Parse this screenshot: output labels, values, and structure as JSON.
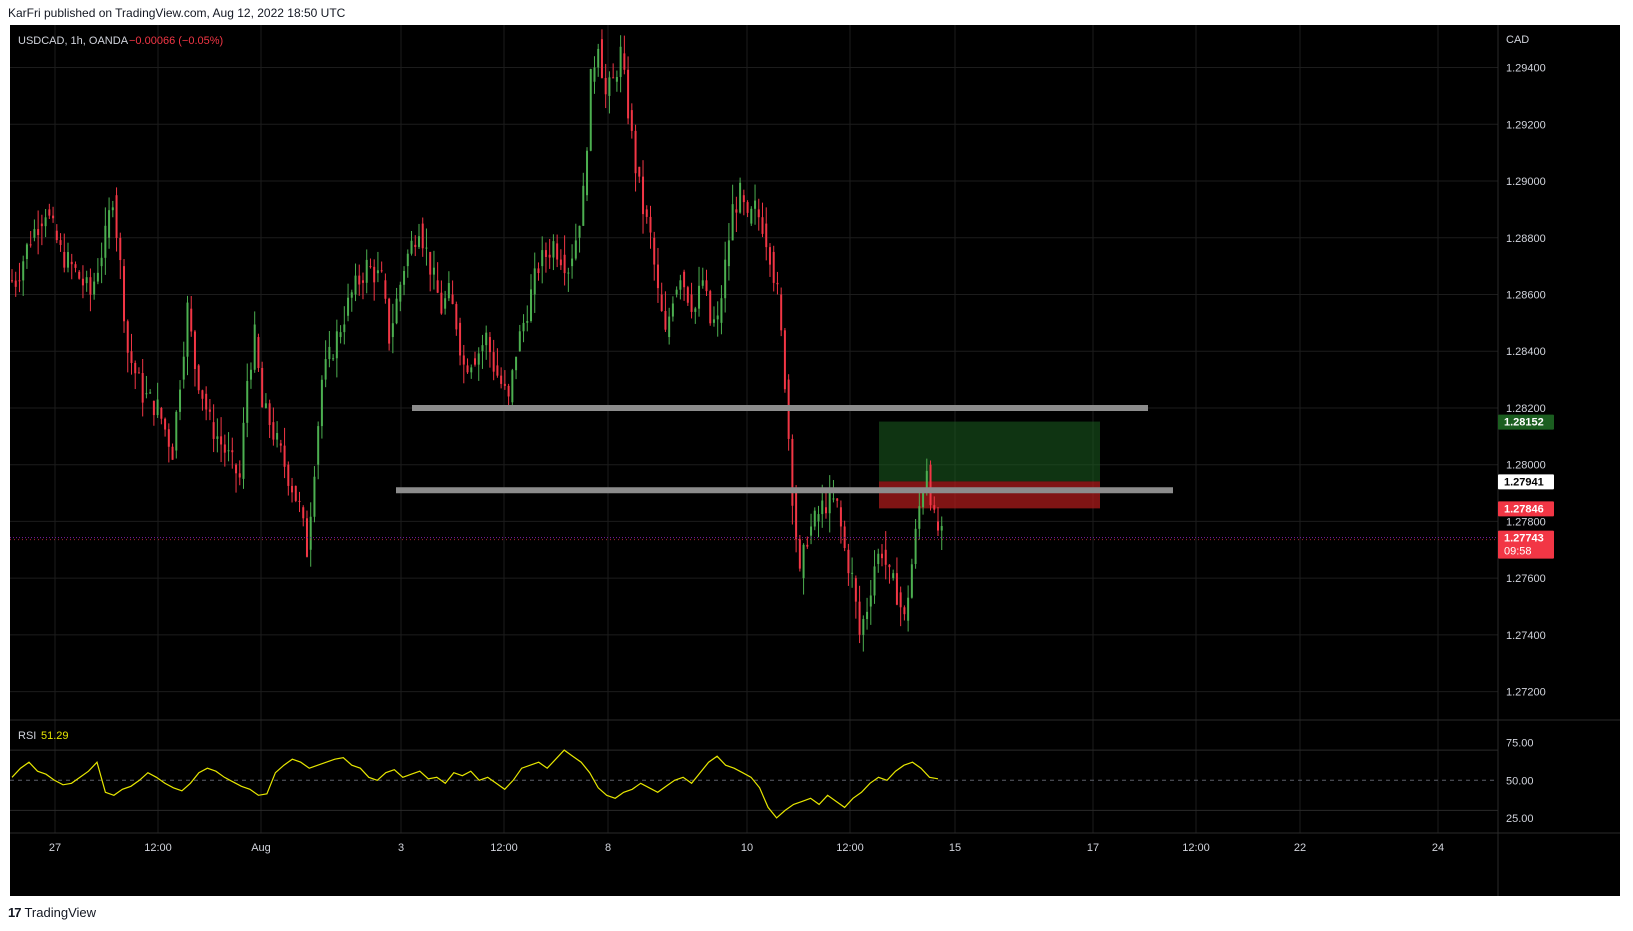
{
  "header": {
    "publisher_text": "KarFri published on TradingView.com, Aug 12, 2022 18:50 UTC"
  },
  "footer": {
    "brand": "TradingView",
    "logo_icon": "tradingview-logo-icon"
  },
  "legend": {
    "symbol": "USDCAD, 1h, OANDA",
    "change": "−0.00066 (−0.05%)",
    "change_color": "#f23645"
  },
  "rsi_legend": {
    "label": "RSI",
    "value": "51.29",
    "color": "#e6e600"
  },
  "colors": {
    "up": "#089981",
    "up_body": "#4caf50",
    "down": "#f23645",
    "background": "#000000",
    "grid": "#1c1c1c",
    "level_line": "#8c8c8c",
    "tp_zone": "#1b5e20",
    "sl_zone": "#b71c1c",
    "current_price_line": "#7b1fa2"
  },
  "chart_data": {
    "type": "candlestick",
    "symbol": "USDCAD",
    "interval": "1h",
    "currency": "CAD",
    "ylim": [
      1.271,
      1.2955
    ],
    "price_ticks": [
      1.294,
      1.292,
      1.29,
      1.288,
      1.286,
      1.284,
      1.282,
      1.28,
      1.278,
      1.276,
      1.274,
      1.272
    ],
    "price_tick_labels": [
      "1.29400",
      "1.29200",
      "1.29000",
      "1.28800",
      "1.28600",
      "1.28400",
      "1.28200",
      "1.28000",
      "1.27800",
      "1.27600",
      "1.27400",
      "1.27200"
    ],
    "x_ticks": [
      "27",
      "12:00",
      "Aug",
      "3",
      "12:00",
      "8",
      "10",
      "12:00",
      "15",
      "17",
      "12:00",
      "22",
      "24"
    ],
    "price_labels": [
      {
        "value": 1.28152,
        "text": "1.28152",
        "bg": "#1b5e20",
        "fg": "#ffffff"
      },
      {
        "value": 1.27941,
        "text": "1.27941",
        "bg": "#ffffff",
        "fg": "#000000"
      },
      {
        "value": 1.27846,
        "text": "1.27846",
        "bg": "#f23645",
        "fg": "#ffffff"
      },
      {
        "value": 1.27743,
        "text": "1.27743",
        "sub": "09:58",
        "bg": "#f23645",
        "fg": "#ffffff"
      }
    ],
    "horizontal_levels": [
      1.282,
      1.2791
    ],
    "long_position": {
      "take_profit": 1.28152,
      "entry": 1.27941,
      "stop_loss": 1.27846
    },
    "current_price": 1.27743,
    "price_path": [
      [
        0,
        1.2865
      ],
      [
        2,
        1.288
      ],
      [
        4,
        1.289
      ],
      [
        6,
        1.2875
      ],
      [
        8,
        1.2868
      ],
      [
        10,
        1.286
      ],
      [
        12,
        1.288
      ],
      [
        13,
        1.2895
      ],
      [
        14,
        1.287
      ],
      [
        15,
        1.284
      ],
      [
        17,
        1.2825
      ],
      [
        19,
        1.282
      ],
      [
        21,
        1.2805
      ],
      [
        22,
        1.283
      ],
      [
        23,
        1.2855
      ],
      [
        24,
        1.2835
      ],
      [
        26,
        1.2815
      ],
      [
        28,
        1.2805
      ],
      [
        29,
        1.28
      ],
      [
        30,
        1.2795
      ],
      [
        31,
        1.283
      ],
      [
        32,
        1.2845
      ],
      [
        33,
        1.282
      ],
      [
        34,
        1.2815
      ],
      [
        36,
        1.28
      ],
      [
        38,
        1.2785
      ],
      [
        39,
        1.277
      ],
      [
        40,
        1.28
      ],
      [
        41,
        1.283
      ],
      [
        43,
        1.2845
      ],
      [
        45,
        1.286
      ],
      [
        47,
        1.287
      ],
      [
        49,
        1.2865
      ],
      [
        50,
        1.2845
      ],
      [
        52,
        1.287
      ],
      [
        54,
        1.2885
      ],
      [
        56,
        1.2865
      ],
      [
        57,
        1.2855
      ],
      [
        58,
        1.286
      ],
      [
        59,
        1.285
      ],
      [
        60,
        1.2835
      ],
      [
        62,
        1.284
      ],
      [
        63,
        1.2845
      ],
      [
        64,
        1.2835
      ],
      [
        66,
        1.2822
      ],
      [
        67,
        1.284
      ],
      [
        69,
        1.286
      ],
      [
        70,
        1.287
      ],
      [
        72,
        1.2878
      ],
      [
        74,
        1.287
      ],
      [
        75,
        1.288
      ],
      [
        76,
        1.2895
      ],
      [
        77,
        1.2935
      ],
      [
        78,
        1.295
      ],
      [
        79,
        1.293
      ],
      [
        80,
        1.2935
      ],
      [
        81,
        1.2945
      ],
      [
        82,
        1.2925
      ],
      [
        83,
        1.2905
      ],
      [
        84,
        1.289
      ],
      [
        85,
        1.288
      ],
      [
        86,
        1.286
      ],
      [
        87,
        1.2845
      ],
      [
        88,
        1.286
      ],
      [
        89,
        1.2868
      ],
      [
        90,
        1.286
      ],
      [
        91,
        1.2855
      ],
      [
        92,
        1.2865
      ],
      [
        93,
        1.285
      ],
      [
        94,
        1.285
      ],
      [
        95,
        1.287
      ],
      [
        96,
        1.289
      ],
      [
        97,
        1.2895
      ],
      [
        98,
        1.2885
      ],
      [
        99,
        1.289
      ],
      [
        100,
        1.2885
      ],
      [
        101,
        1.2875
      ],
      [
        102,
        1.286
      ],
      [
        103,
        1.283
      ],
      [
        104,
        1.279
      ],
      [
        105,
        1.276
      ],
      [
        106,
        1.2775
      ],
      [
        107,
        1.278
      ],
      [
        108,
        1.2785
      ],
      [
        109,
        1.2788
      ],
      [
        110,
        1.2785
      ],
      [
        111,
        1.277
      ],
      [
        112,
        1.276
      ],
      [
        113,
        1.274
      ],
      [
        114,
        1.275
      ],
      [
        115,
        1.2765
      ],
      [
        116,
        1.277
      ],
      [
        117,
        1.276
      ],
      [
        118,
        1.2755
      ],
      [
        119,
        1.2745
      ],
      [
        120,
        1.2765
      ],
      [
        121,
        1.2785
      ],
      [
        122,
        1.28
      ],
      [
        123,
        1.278
      ],
      [
        124,
        1.2774
      ]
    ],
    "rsi": {
      "ylim": [
        15,
        90
      ],
      "ticks": [
        75,
        50,
        25
      ],
      "tick_labels": [
        "75.00",
        "50.00",
        "25.00"
      ],
      "levels": [
        70,
        50,
        30
      ],
      "color": "#e6e600",
      "values": [
        52,
        58,
        62,
        56,
        54,
        50,
        47,
        48,
        52,
        56,
        62,
        42,
        40,
        44,
        46,
        50,
        55,
        52,
        48,
        45,
        43,
        48,
        55,
        58,
        56,
        52,
        49,
        46,
        44,
        40,
        41,
        55,
        60,
        64,
        62,
        58,
        60,
        62,
        64,
        65,
        60,
        58,
        52,
        50,
        55,
        57,
        52,
        54,
        56,
        51,
        52,
        48,
        55,
        53,
        56,
        50,
        52,
        48,
        44,
        50,
        58,
        60,
        62,
        58,
        64,
        70,
        66,
        62,
        55,
        45,
        40,
        38,
        42,
        44,
        48,
        45,
        42,
        46,
        50,
        52,
        48,
        55,
        62,
        66,
        60,
        58,
        55,
        52,
        45,
        32,
        25,
        30,
        34,
        36,
        38,
        34,
        40,
        36,
        32,
        38,
        42,
        48,
        52,
        50,
        56,
        60,
        62,
        58,
        52,
        51
      ]
    }
  },
  "panels": {
    "price_axis_label": "CAD"
  }
}
